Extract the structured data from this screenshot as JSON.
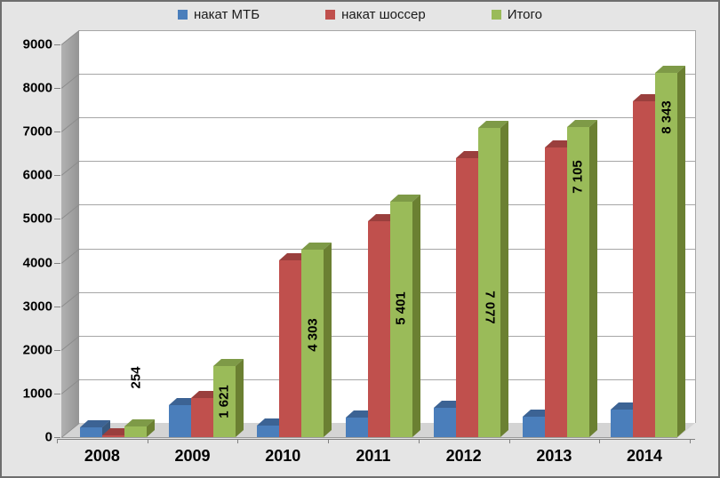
{
  "chart": {
    "background": "#e5e5e5",
    "wall_color": "#ffffff",
    "side_wall_color": "#a8a8a8",
    "floor_color": "#d4d4d4",
    "gridline_color": "#a6a6a6",
    "axis_color": "#808080",
    "text_color": "#000000"
  },
  "legend": {
    "position": "top",
    "items": [
      {
        "label": "накат МТБ",
        "color": "#4a7ebb"
      },
      {
        "label": "накат шоссер",
        "color": "#c0504d"
      },
      {
        "label": "Итого",
        "color": "#9abb59"
      }
    ]
  },
  "chart_data": {
    "type": "bar",
    "style": "3d-clustered-column",
    "title": "",
    "categories": [
      "2008",
      "2009",
      "2010",
      "2011",
      "2012",
      "2013",
      "2014"
    ],
    "series": [
      {
        "name": "накат МТБ",
        "color": "#4a7ebb",
        "values": [
          220,
          730,
          255,
          450,
          680,
          460,
          640
        ]
      },
      {
        "name": "накат шоссер",
        "color": "#c0504d",
        "values": [
          34,
          891,
          4048,
          4951,
          6397,
          6645,
          7703
        ]
      },
      {
        "name": "Итого",
        "color": "#9abb59",
        "values": [
          254,
          1621,
          4303,
          5401,
          7077,
          7105,
          8343
        ],
        "data_labels": [
          "254",
          "1 621",
          "4 303",
          "5 401",
          "7 077",
          "7 105",
          "8 343"
        ]
      }
    ],
    "ylim": [
      0,
      9000
    ],
    "ytick_interval": 1000,
    "y_tick_labels": [
      "0",
      "1000",
      "2000",
      "3000",
      "4000",
      "5000",
      "6000",
      "7000",
      "8000",
      "9000"
    ],
    "grid": true,
    "legend_position": "top"
  }
}
